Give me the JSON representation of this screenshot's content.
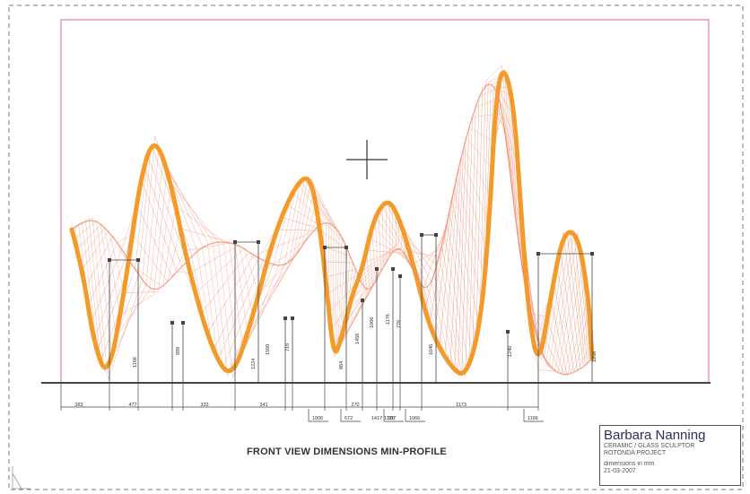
{
  "drawing": {
    "view_title": "FRONT VIEW  DIMENSIONS MIN-PROFILE",
    "view_sub": "",
    "colors": {
      "sculpture_mesh": "#f08a6a",
      "sculpture_edge": "#f39a2a",
      "frame_pink": "#e89aaa",
      "dimension": "#444444",
      "border": "#777777"
    }
  },
  "title_block": {
    "name": "Barbara Nanning",
    "line1": "CERAMIC / GLASS SCULPTOR",
    "line2": "ROTONDA PROJECT",
    "line3": "dimensions in mm",
    "line4": "21-03-2007"
  },
  "dimensions": {
    "vertical": [
      "1166",
      "889",
      "1224",
      "716",
      "864",
      "1456",
      "1066",
      "1176",
      "1046",
      "1240",
      "1256",
      "776",
      "1560"
    ],
    "horizontal": [
      "383",
      "477",
      "333",
      "341",
      "270",
      "1173",
      "1176",
      "1417"
    ],
    "leaders": [
      "1006",
      "672",
      "387",
      "1066",
      "1166"
    ]
  }
}
